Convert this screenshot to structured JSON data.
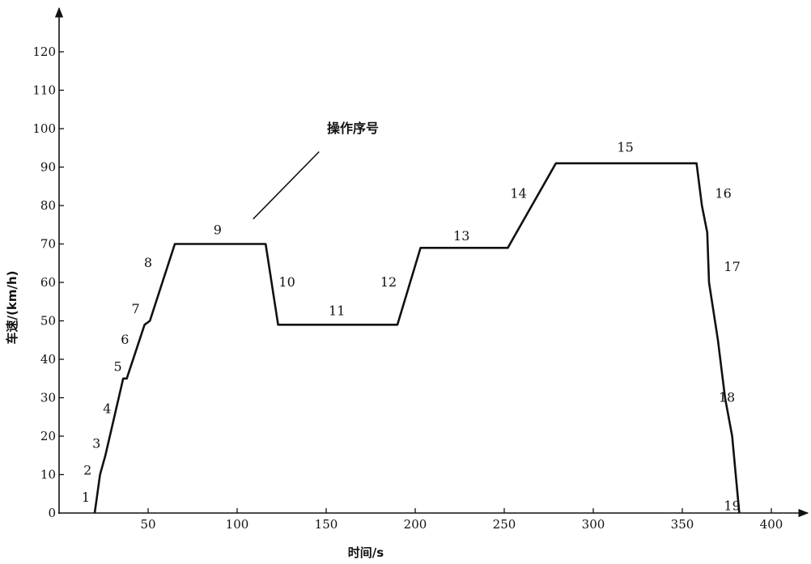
{
  "chart_data": {
    "type": "line",
    "xlabel": "时间/s",
    "ylabel": "车速/(km/h)",
    "xlim": [
      0,
      400
    ],
    "ylim": [
      0,
      120
    ],
    "xticks": [
      50,
      100,
      150,
      200,
      250,
      300,
      350,
      400
    ],
    "yticks": [
      0,
      10,
      20,
      30,
      40,
      50,
      60,
      70,
      80,
      90,
      100,
      110,
      120
    ],
    "grid": false,
    "series": [
      {
        "x": [
          20,
          23,
          26,
          36,
          38,
          48,
          51,
          65,
          116,
          123,
          190,
          203,
          252,
          279,
          358,
          361,
          364,
          365,
          370,
          374,
          378,
          382
        ],
        "y": [
          0,
          10,
          15,
          35,
          35,
          49,
          50,
          70,
          70,
          49,
          49,
          69,
          69,
          91,
          91,
          80,
          73,
          60,
          45,
          30,
          20,
          0
        ]
      }
    ],
    "segment_labels": [
      {
        "text": "1",
        "x": 15,
        "y": 3
      },
      {
        "text": "2",
        "x": 16,
        "y": 10
      },
      {
        "text": "3",
        "x": 21,
        "y": 17
      },
      {
        "text": "4",
        "x": 27,
        "y": 26
      },
      {
        "text": "5",
        "x": 33,
        "y": 37
      },
      {
        "text": "6",
        "x": 37,
        "y": 44
      },
      {
        "text": "7",
        "x": 43,
        "y": 52
      },
      {
        "text": "8",
        "x": 50,
        "y": 64
      },
      {
        "text": "9",
        "x": 89,
        "y": 72.5
      },
      {
        "text": "10",
        "x": 128,
        "y": 59
      },
      {
        "text": "11",
        "x": 156,
        "y": 51.5
      },
      {
        "text": "12",
        "x": 185,
        "y": 59
      },
      {
        "text": "13",
        "x": 226,
        "y": 71
      },
      {
        "text": "14",
        "x": 258,
        "y": 82
      },
      {
        "text": "15",
        "x": 318,
        "y": 94
      },
      {
        "text": "16",
        "x": 373,
        "y": 82
      },
      {
        "text": "17",
        "x": 378,
        "y": 63
      },
      {
        "text": "18",
        "x": 375,
        "y": 29
      },
      {
        "text": "19",
        "x": 378,
        "y": 0.7
      }
    ],
    "annotation": {
      "text": "操作序号",
      "text_x": 165,
      "text_y": 99,
      "line_from": [
        146,
        94
      ],
      "line_to": [
        109,
        76.5
      ]
    }
  }
}
